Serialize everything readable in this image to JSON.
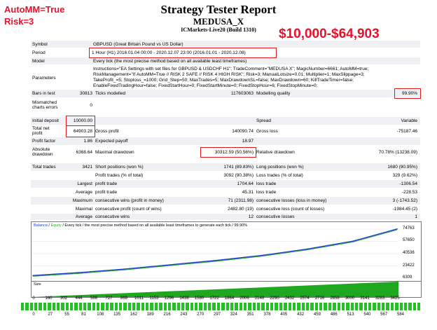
{
  "annotations": {
    "automm": "AutoMM=True",
    "risk": "Risk=3",
    "range": "$10,000-$64,903"
  },
  "header": {
    "title": "Strategy Tester Report",
    "ea_name": "MEDUSA_X",
    "server": "ICMarkets-Live20 (Build 1310)"
  },
  "info": {
    "symbol_label": "Symbol",
    "symbol_value": "GBPUSD (Great Britain Pound vs US Dollar)",
    "period_label": "Period",
    "period_value": "1 Hour (H1) 2016.01.04 00:00 - 2020.12.07 23:00 (2016.01.01 - 2020.12.08)",
    "model_label": "Model",
    "model_value": "Every tick (the most precise method based on all available least timeframes)",
    "params_label": "Parameters",
    "params_lines": [
      "Instructions=\"EA Settings with set files for GBPUSD & USDCHF H1\"; TradeComment=\"MEDUSA X\"; MagicNumber=6661; AutoMM=true;",
      "RiskManagement=\"If AutoMM=True // RISK 2 SAFE // RISK 4 HIGH RISK\"; Risk=3; ManualLotsize=0.01; Multiplier=1; MaxSlippage=3;",
      "TakeProfit_=5; Stoploss_=1000; Grid_Step=50; MaxTrades=5; MaxDrawdownSL=false; MaxDrawdown=60; KillTradeTimer=false;",
      "EnableFixedTradingHour=false; FixedStartHour=0; FixedStartMinute=0; FixedStopHour=6; FixedStopMinute=0;"
    ]
  },
  "stats": {
    "bars_label": "Bars in test",
    "bars_value": "30813",
    "ticks_label": "Ticks modelled",
    "ticks_value": "117603063",
    "quality_label": "Modelling quality",
    "quality_value": "99.90%",
    "mismatched_label": "Mismatched charts errors",
    "mismatched_value": "0",
    "initial_label": "Initial deposit",
    "initial_value": "10000.00",
    "spread_label": "Spread",
    "spread_value": "Variable",
    "netprofit_label": "Total net profit",
    "netprofit_value": "64903.28",
    "grossprofit_label": "Gross profit",
    "grossprofit_value": "140090.74",
    "grossloss_label": "Gross loss",
    "grossloss_value": "-75187.46",
    "pf_label": "Profit factor",
    "pf_value": "1.86",
    "payoff_label": "Expected payoff",
    "payoff_value": "18.97",
    "absdd_label": "Absolute drawdown",
    "absdd_value": "6368.64",
    "maxdd_label": "Maximal drawdown",
    "maxdd_value": "30312.59 (50.56%)",
    "reldd_label": "Relative drawdown",
    "reldd_value": "70.78% (13238.09)",
    "trades_label": "Total trades",
    "trades_value": "3421",
    "short_label": "Short positions (won %)",
    "short_value": "1741 (89.83%)",
    "long_label": "Long positions (won %)",
    "long_value": "1680 (90.95%)",
    "ptrades_label": "Profit trades (% of total)",
    "ptrades_value": "3092 (90.38%)",
    "ltrades_label": "Loss trades (% of total)",
    "ltrades_value": "329 (9.62%)",
    "largest": "Largest",
    "average": "Average",
    "maximum": "Maximum",
    "maximal": "Maximal",
    "pt_label": "profit trade",
    "lpt_value": "1704.64",
    "apt_value": "45.31",
    "lt_label": "loss trade",
    "llt_value": "-1306.54",
    "alt_value": "-228.53",
    "cw_label": "consecutive wins (profit in money)",
    "cw_value": "71 (2311.98)",
    "cl_label": "consecutive losses (loss in money)",
    "cl_value": "3 (-1743.52)",
    "cp_label": "consecutive profit (count of wins)",
    "cp_value": "2482.80 (19)",
    "cls_label": "consecutive loss (count of losses)",
    "cls_value": "-1984.45 (2)",
    "acw_label": "consecutive wins",
    "acw_value": "12",
    "acl_label": "consecutive losses",
    "acl_value": "1"
  },
  "chart_data": {
    "type": "line",
    "legend": [
      "Balance",
      "Equity"
    ],
    "legend_text": "Balance / Equity / Every tick / the most precise method based on all available least timeframes to generate each tick / 99.90%",
    "balance_label": "Balance",
    "equity_label": "Equity",
    "legend_rest": "/ Every tick / the most precise method based on all available least timeframes to generate each tick / 99.90%",
    "y_ticks": [
      "74763",
      "57650",
      "40536",
      "23422",
      "6309"
    ],
    "ylim": [
      6309,
      74763
    ],
    "x": [
      0,
      430,
      860,
      1290,
      1720,
      2150,
      2580,
      3010,
      3425
    ],
    "y": [
      10000,
      14000,
      19000,
      25000,
      31000,
      38000,
      47000,
      58000,
      74900
    ],
    "size_label": "Size",
    "x_ticks": [
      "0",
      "160",
      "302",
      "444",
      "586",
      "727",
      "869",
      "1011",
      "1153",
      "1296",
      "1438",
      "1580",
      "1722",
      "1864",
      "2006",
      "2148",
      "2290",
      "2432",
      "2574",
      "2716",
      "2858",
      "3000",
      "3141",
      "3283",
      "3425"
    ],
    "x_ticks2": [
      "0",
      "27",
      "55",
      "81",
      "108",
      "135",
      "162",
      "189",
      "216",
      "243",
      "270",
      "297",
      "324",
      "351",
      "378",
      "405",
      "432",
      "459",
      "486",
      "513",
      "540",
      "567",
      "584"
    ],
    "colors": {
      "balance": "#1e40c8",
      "equity": "#2aa52a",
      "size": "#1fa81f"
    }
  }
}
